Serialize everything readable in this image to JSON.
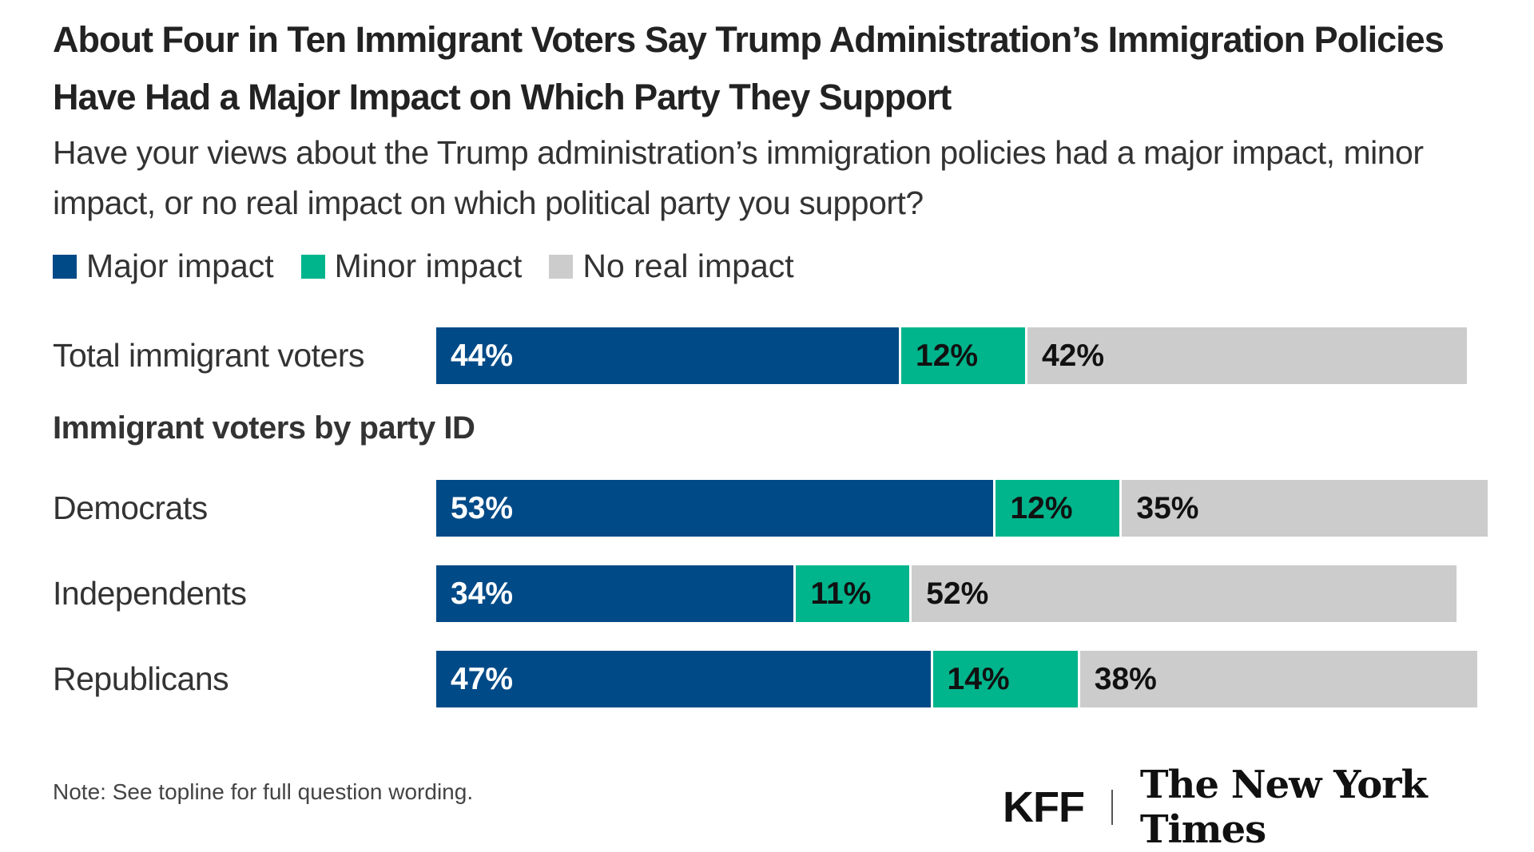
{
  "colors": {
    "major": "#004a87",
    "minor": "#00b48c",
    "none": "#cccccc"
  },
  "chart_data": {
    "type": "bar",
    "orientation": "horizontal-stacked",
    "title": "About Four in Ten Immigrant Voters Say Trump Administration’s Immigration Policies Have Had a Major Impact on Which Party They Support",
    "subtitle": "Have your views about the Trump administration’s immigration policies had a major impact, minor impact, or no real impact on which political party you support?",
    "legend_position": "top-left",
    "section_header": "Immigrant voters by party ID",
    "categories": [
      "Total immigrant voters",
      "Democrats",
      "Independents",
      "Republicans"
    ],
    "series": [
      {
        "name": "Major impact",
        "values": [
          44,
          53,
          34,
          47
        ]
      },
      {
        "name": "Minor impact",
        "values": [
          12,
          12,
          11,
          14
        ]
      },
      {
        "name": "No real impact",
        "values": [
          42,
          35,
          52,
          38
        ]
      }
    ],
    "unit": "%",
    "xlim": [
      0,
      100
    ],
    "grid": false
  },
  "note": "Note: See topline for full question wording.",
  "logos": {
    "kff": "KFF",
    "nyt": "The New York Times"
  }
}
